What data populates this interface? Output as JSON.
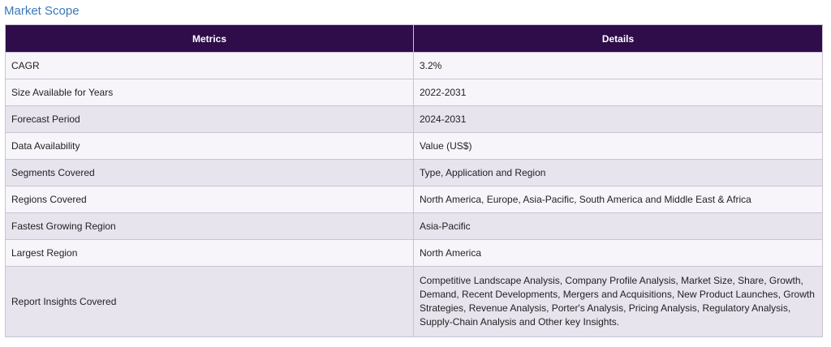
{
  "section_title": "Market Scope",
  "table": {
    "headers": [
      "Metrics",
      "Details"
    ],
    "rows": [
      {
        "metric": "CAGR",
        "details": "3.2%"
      },
      {
        "metric": "Size Available for Years",
        "details": "2022-2031"
      },
      {
        "metric": "Forecast Period",
        "details": "2024-2031"
      },
      {
        "metric": "Data Availability",
        "details": "Value (US$)"
      },
      {
        "metric": "Segments Covered",
        "details": "Type, Application and Region"
      },
      {
        "metric": "Regions Covered",
        "details": "North America, Europe, Asia-Pacific, South America and Middle East & Africa"
      },
      {
        "metric": "Fastest Growing Region",
        "details": "Asia-Pacific"
      },
      {
        "metric": "Largest Region",
        "details": "North America"
      },
      {
        "metric": "Report Insights Covered",
        "details": "Competitive Landscape Analysis, Company Profile Analysis, Market Size, Share, Growth, Demand, Recent Developments, Mergers and Acquisitions, New Product Launches, Growth Strategies, Revenue Analysis, Porter's Analysis, Pricing Analysis, Regulatory Analysis, Supply-Chain Analysis and Other key Insights."
      }
    ]
  },
  "colors": {
    "header_bg": "#2e0d4a",
    "title": "#3a78b8",
    "row_light": "#f7f5fa",
    "row_dark": "#e7e4ee"
  }
}
